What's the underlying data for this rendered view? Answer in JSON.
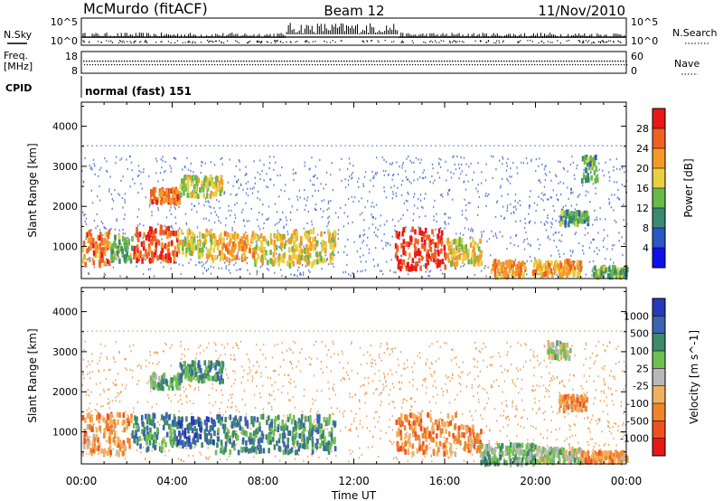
{
  "header": {
    "station": "McMurdo (fitACF)",
    "beam": "Beam 12",
    "date": "11/Nov/2010"
  },
  "strip_nsky": {
    "left_label": "N.Sky",
    "tick_top": "10^5",
    "tick_bottom": "10^0",
    "right_label": "N.Search",
    "right_tick_top": "10^5",
    "right_tick_bottom": "10^0"
  },
  "strip_freq": {
    "left_label_1": "Freq.",
    "left_label_2": "[MHz]",
    "tick_top": "18",
    "tick_bottom": "8",
    "right_label": "Nave",
    "right_tick_top": "60",
    "right_tick_bottom": "0"
  },
  "cpid": {
    "label": "CPID",
    "mode": "normal (fast) 151"
  },
  "chart_data": [
    {
      "type": "heatmap",
      "name": "power",
      "ylabel": "Slant Range [km]",
      "ylim": [
        200,
        4600
      ],
      "yticks": [
        "1000",
        "2000",
        "3000",
        "4000"
      ],
      "colorbar_label": "Power [dB]",
      "colorbar_ticks": [
        "4",
        "8",
        "12",
        "16",
        "20",
        "24",
        "28"
      ],
      "colors": [
        "#1010ee",
        "#2a56c8",
        "#3a8a70",
        "#6ab84a",
        "#e8d040",
        "#f49a28",
        "#f06020",
        "#e81818"
      ],
      "scatter_color": "#2a56c8",
      "patches": [
        {
          "t": [
            0.0,
            1.2
          ],
          "r": [
            600,
            1450
          ],
          "level": 0.8
        },
        {
          "t": [
            1.2,
            2.2
          ],
          "r": [
            700,
            1300
          ],
          "level": 0.4
        },
        {
          "t": [
            2.2,
            4.2
          ],
          "r": [
            700,
            1550
          ],
          "level": 0.9
        },
        {
          "t": [
            3.0,
            4.3
          ],
          "r": [
            2150,
            2500
          ],
          "level": 0.8
        },
        {
          "t": [
            4.3,
            6.2
          ],
          "r": [
            2300,
            2800
          ],
          "level": 0.55
        },
        {
          "t": [
            4.2,
            5.7
          ],
          "r": [
            800,
            1450
          ],
          "level": 0.55
        },
        {
          "t": [
            5.7,
            7.6
          ],
          "r": [
            700,
            1400
          ],
          "level": 0.7
        },
        {
          "t": [
            7.6,
            9.3
          ],
          "r": [
            550,
            1350
          ],
          "level": 0.6
        },
        {
          "t": [
            9.3,
            11.2
          ],
          "r": [
            600,
            1450
          ],
          "level": 0.6
        },
        {
          "t": [
            13.8,
            16.0
          ],
          "r": [
            500,
            1500
          ],
          "level": 0.95
        },
        {
          "t": [
            16.0,
            17.6
          ],
          "r": [
            600,
            1250
          ],
          "level": 0.6
        },
        {
          "t": [
            18.0,
            19.5
          ],
          "r": [
            300,
            700
          ],
          "level": 0.75
        },
        {
          "t": [
            19.8,
            22.0
          ],
          "r": [
            350,
            700
          ],
          "level": 0.7
        },
        {
          "t": [
            22.5,
            24.0
          ],
          "r": [
            300,
            550
          ],
          "level": 0.4
        },
        {
          "t": [
            21.0,
            22.3
          ],
          "r": [
            1600,
            1950
          ],
          "level": 0.35
        },
        {
          "t": [
            22.0,
            22.7
          ],
          "r": [
            2700,
            3300
          ],
          "level": 0.35
        }
      ]
    },
    {
      "type": "heatmap",
      "name": "velocity",
      "ylabel": "Slant Range [km]",
      "ylim": [
        200,
        4600
      ],
      "yticks": [
        "1000",
        "2000",
        "3000",
        "4000"
      ],
      "xlabel": "Time UT",
      "xticks": [
        "00:00",
        "04:00",
        "08:00",
        "12:00",
        "16:00",
        "20:00",
        "00:00"
      ],
      "xlim": [
        0,
        24
      ],
      "colorbar_label": "Velocity [m s^-1]",
      "colorbar_ticks": [
        "1000",
        "500",
        "100",
        "25",
        "-25",
        "-100",
        "-500",
        "-1000"
      ],
      "colors": [
        "#2838b8",
        "#3a62b0",
        "#3d8a68",
        "#70c050",
        "#b8b8b8",
        "#f0b060",
        "#f08428",
        "#f05020",
        "#e81818"
      ],
      "scatter_color": "#f08428",
      "patches": [
        {
          "t": [
            0.0,
            2.2
          ],
          "r": [
            500,
            1500
          ],
          "level": 0.7
        },
        {
          "t": [
            2.2,
            4.2
          ],
          "r": [
            600,
            1500
          ],
          "level": 0.25
        },
        {
          "t": [
            3.0,
            4.3
          ],
          "r": [
            2150,
            2500
          ],
          "level": 0.35
        },
        {
          "t": [
            4.3,
            6.2
          ],
          "r": [
            2300,
            2800
          ],
          "level": 0.25
        },
        {
          "t": [
            4.2,
            5.8
          ],
          "r": [
            700,
            1400
          ],
          "level": 0.15
        },
        {
          "t": [
            5.8,
            11.2
          ],
          "r": [
            550,
            1450
          ],
          "level": 0.25
        },
        {
          "t": [
            13.8,
            16.5
          ],
          "r": [
            500,
            1500
          ],
          "level": 0.72
        },
        {
          "t": [
            16.5,
            17.6
          ],
          "r": [
            600,
            1200
          ],
          "level": 0.72
        },
        {
          "t": [
            17.5,
            20.0
          ],
          "r": [
            250,
            750
          ],
          "level": 0.35
        },
        {
          "t": [
            20.0,
            22.0
          ],
          "r": [
            300,
            650
          ],
          "level": 0.45
        },
        {
          "t": [
            22.0,
            24.0
          ],
          "r": [
            300,
            550
          ],
          "level": 0.7
        },
        {
          "t": [
            20.5,
            21.5
          ],
          "r": [
            2900,
            3300
          ],
          "level": 0.45
        },
        {
          "t": [
            21.0,
            22.3
          ],
          "r": [
            1600,
            1950
          ],
          "level": 0.7
        }
      ]
    }
  ]
}
